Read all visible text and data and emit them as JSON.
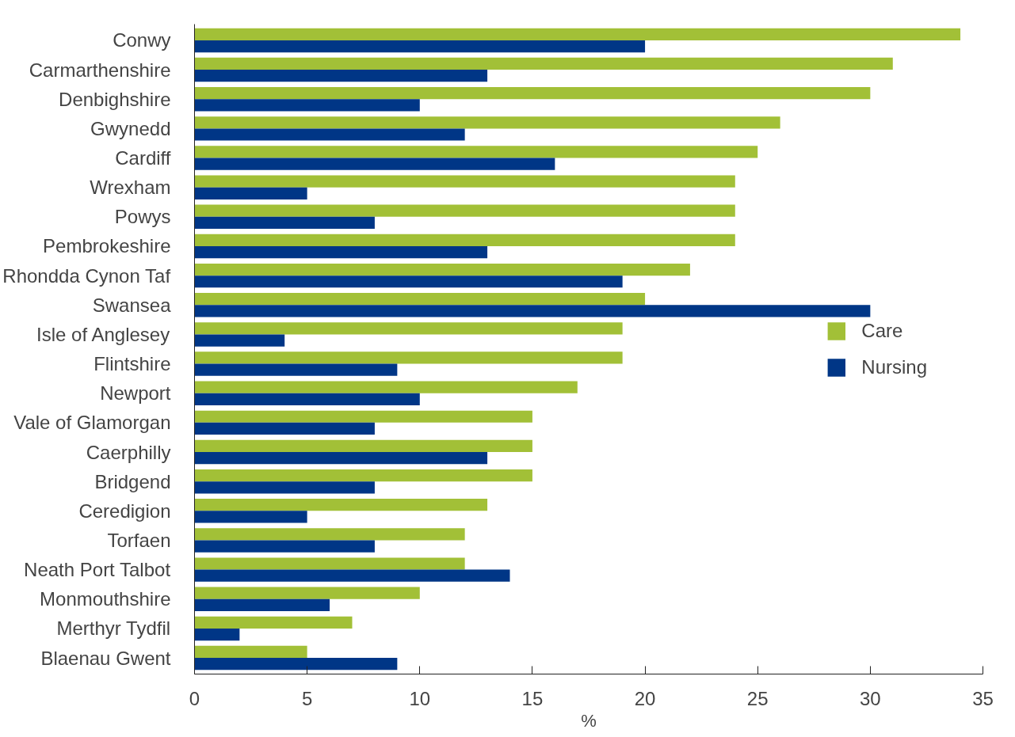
{
  "chart_data": {
    "type": "bar",
    "orientation": "horizontal",
    "xlabel": "%",
    "categories": [
      "Conwy",
      "Carmarthenshire",
      "Denbighshire",
      "Gwynedd",
      "Cardiff",
      "Wrexham",
      "Powys",
      "Pembrokeshire",
      "Rhondda Cynon Taf",
      "Swansea",
      "Isle of Anglesey",
      "Flintshire",
      "Newport",
      "Vale of Glamorgan",
      "Caerphilly",
      "Bridgend",
      "Ceredigion",
      "Torfaen",
      "Neath Port Talbot",
      "Monmouthshire",
      "Merthyr Tydfil",
      "Blaenau Gwent"
    ],
    "series": [
      {
        "name": "Care",
        "color": "#a2c037",
        "values": [
          34,
          31,
          30,
          26,
          25,
          24,
          24,
          24,
          22,
          20,
          19,
          19,
          17,
          15,
          15,
          15,
          13,
          12,
          12,
          10,
          7,
          5
        ]
      },
      {
        "name": "Nursing",
        "color": "#003686",
        "values": [
          20,
          13,
          10,
          12,
          16,
          5,
          8,
          13,
          19,
          30,
          4,
          9,
          10,
          8,
          13,
          8,
          5,
          8,
          14,
          6,
          2,
          9
        ]
      }
    ],
    "xlim": [
      0,
      35
    ],
    "xticks": [
      0,
      5,
      10,
      15,
      20,
      25,
      30,
      35
    ],
    "grid": false,
    "legend": "right"
  }
}
